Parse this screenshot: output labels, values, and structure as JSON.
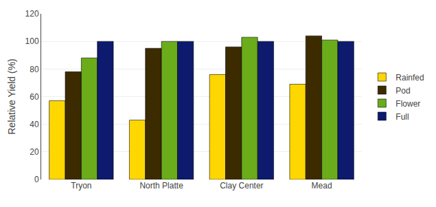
{
  "chart_data": {
    "type": "bar",
    "categories": [
      "Tryon",
      "North Platte",
      "Clay Center",
      "Mead"
    ],
    "series": [
      {
        "name": "Rainfed",
        "color": "#FFD700",
        "values": [
          57,
          43,
          76,
          69
        ]
      },
      {
        "name": "Pod",
        "color": "#3D2B00",
        "values": [
          78,
          95,
          96,
          104
        ]
      },
      {
        "name": "Flower",
        "color": "#6AAC1A",
        "values": [
          88,
          100,
          103,
          101
        ]
      },
      {
        "name": "Full",
        "color": "#0D1A6E",
        "values": [
          100,
          100,
          100,
          100
        ]
      }
    ],
    "ylabel": "Relative Yield (%)",
    "ylim": [
      0,
      120
    ],
    "yticks": [
      0,
      20,
      40,
      60,
      80,
      100,
      120
    ],
    "grid": true,
    "legend": "right"
  }
}
